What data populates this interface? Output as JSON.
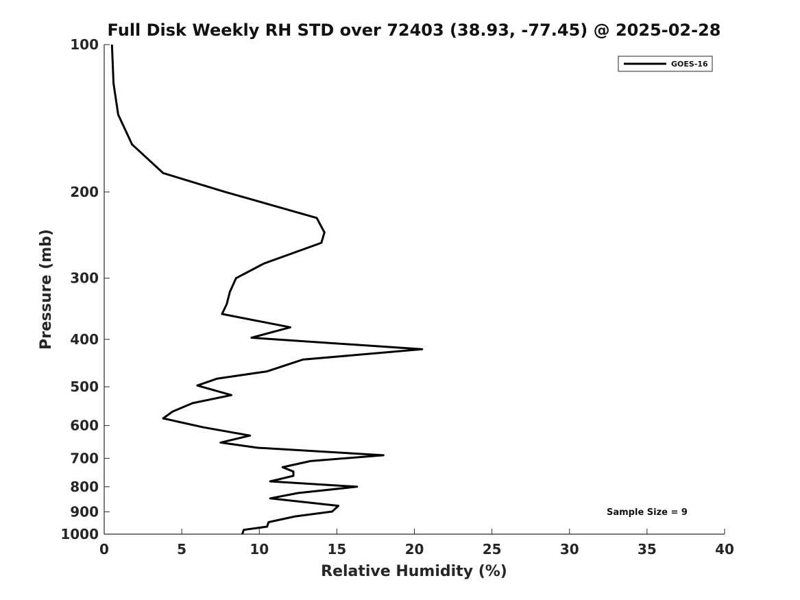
{
  "chart_data": {
    "type": "line",
    "title": "Full Disk Weekly RH STD over 72403 (38.93, -77.45) @ 2025-02-28",
    "xlabel": "Relative Humidity (%)",
    "ylabel": "Pressure (mb)",
    "xlim": [
      0,
      40
    ],
    "ylim": [
      1000,
      100
    ],
    "yscale": "log",
    "y_reversed": true,
    "xticks": [
      0,
      5,
      10,
      15,
      20,
      25,
      30,
      35,
      40
    ],
    "yticks": [
      100,
      200,
      300,
      400,
      500,
      600,
      700,
      800,
      900,
      1000
    ],
    "grid": false,
    "legend_position": "top-right",
    "series": [
      {
        "name": "GOES-16",
        "color": "#000000",
        "x": [
          0.5,
          0.6,
          0.9,
          1.8,
          3.8,
          7.8,
          13.7,
          14.2,
          14.0,
          10.3,
          8.5,
          8.1,
          7.9,
          7.6,
          12.0,
          9.5,
          20.5,
          12.8,
          10.5,
          7.3,
          6.0,
          8.2,
          5.7,
          4.4,
          3.8,
          6.4,
          9.4,
          7.5,
          9.9,
          18.0,
          13.3,
          11.5,
          12.2,
          12.2,
          10.7,
          16.3,
          12.5,
          10.7,
          15.1,
          14.7,
          12.3,
          10.6,
          10.5,
          9.0,
          8.9
        ],
        "y": [
          100,
          120,
          139,
          160,
          183,
          200,
          226,
          242,
          254,
          280,
          300,
          320,
          339,
          355,
          378,
          397,
          419,
          440,
          465,
          481,
          497,
          520,
          540,
          562,
          580,
          605,
          629,
          650,
          666,
          690,
          709,
          730,
          745,
          760,
          780,
          800,
          824,
          845,
          875,
          899,
          920,
          945,
          965,
          980,
          1000
        ]
      }
    ],
    "annotations": [
      "Sample Size = 9"
    ]
  }
}
